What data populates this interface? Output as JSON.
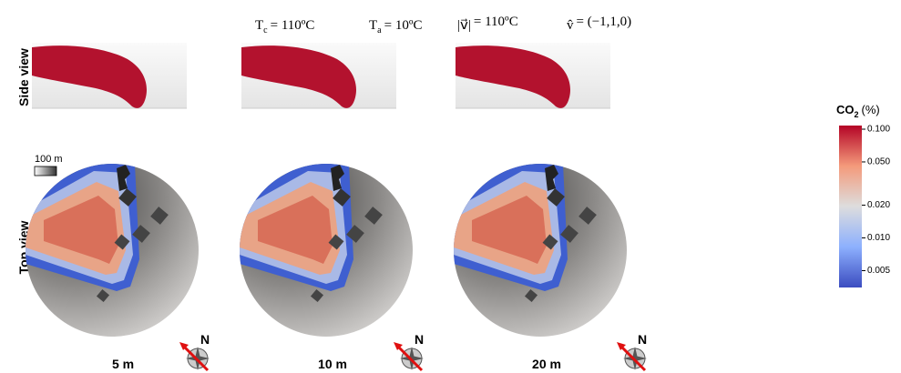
{
  "header": {
    "params": [
      {
        "base": "T",
        "sub": "c",
        "rest": "= 110ºC"
      },
      {
        "base": "T",
        "sub": "a",
        "rest": "= 10ºC"
      },
      {
        "base": "|v⃗|",
        "sub": "",
        "rest": "= 110ºC"
      },
      {
        "base": "v̂",
        "sub": "",
        "rest": "= (−1,1,0)"
      }
    ]
  },
  "rows": [
    "Side view",
    "Top view"
  ],
  "scale_bar": "100 m",
  "panels": [
    "5 m",
    "10 m",
    "20 m"
  ],
  "compass": "N",
  "colorbar": {
    "title": {
      "base": "CO",
      "sub": "2",
      "unit": "(%)"
    },
    "scale": "log",
    "lim": [
      0.0035,
      0.108
    ],
    "colors": [
      "#3b4cc0",
      "#8db0fe",
      "#dddddd",
      "#f49a7b",
      "#b40426"
    ],
    "ticks": [
      {
        "value": 0.1,
        "label": "0.100"
      },
      {
        "value": 0.05,
        "label": "0.050"
      },
      {
        "value": 0.02,
        "label": "0.020"
      },
      {
        "value": 0.01,
        "label": "0.010"
      },
      {
        "value": 0.005,
        "label": "0.005"
      }
    ]
  }
}
